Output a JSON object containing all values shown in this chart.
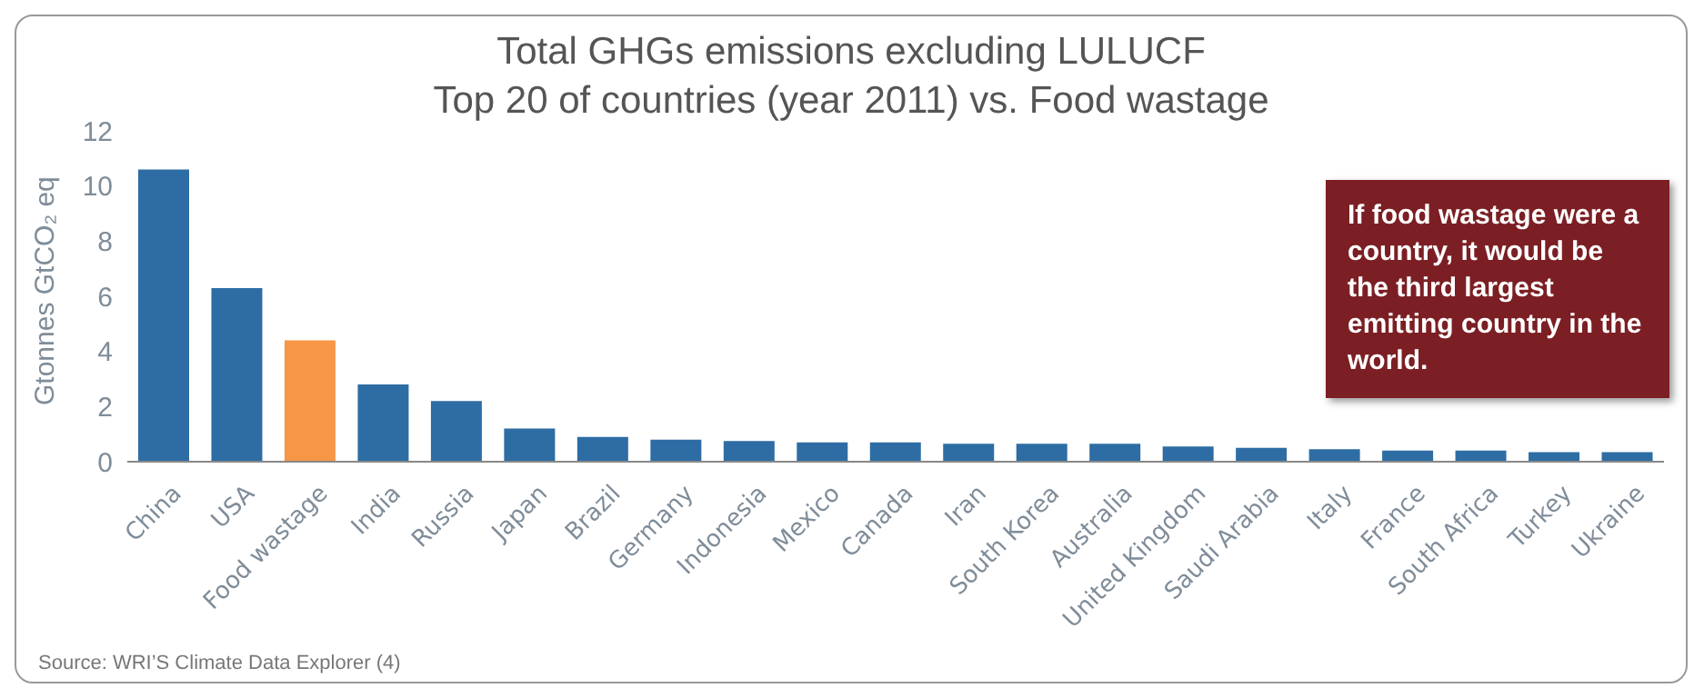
{
  "chart_data": {
    "type": "bar",
    "title": "Total GHGs emissions excluding LULUCF",
    "subtitle": "Top 20 of countries (year 2011) vs. Food wastage",
    "ylabel": "Gtonnes GtCO₂ eq",
    "categories": [
      "China",
      "USA",
      "Food wastage",
      "India",
      "Russia",
      "Japan",
      "Brazil",
      "Germany",
      "Indonesia",
      "Mexico",
      "Canada",
      "Iran",
      "South Korea",
      "Australia",
      "United Kingdom",
      "Saudi Arabia",
      "Italy",
      "France",
      "South Africa",
      "Turkey",
      "Ukraine"
    ],
    "values": [
      10.6,
      6.3,
      4.4,
      2.8,
      2.2,
      1.2,
      0.9,
      0.8,
      0.75,
      0.7,
      0.7,
      0.65,
      0.65,
      0.65,
      0.55,
      0.5,
      0.45,
      0.4,
      0.4,
      0.35,
      0.35
    ],
    "colors": [
      "#2e6da4",
      "#2e6da4",
      "#f79646",
      "#2e6da4",
      "#2e6da4",
      "#2e6da4",
      "#2e6da4",
      "#2e6da4",
      "#2e6da4",
      "#2e6da4",
      "#2e6da4",
      "#2e6da4",
      "#2e6da4",
      "#2e6da4",
      "#2e6da4",
      "#2e6da4",
      "#2e6da4",
      "#2e6da4",
      "#2e6da4",
      "#2e6da4",
      "#2e6da4"
    ],
    "ylim": [
      0,
      12
    ],
    "yticks": [
      0,
      2,
      4,
      6,
      8,
      10,
      12
    ],
    "grid": false,
    "annotations": [
      "If food wastage were a country, it would be the third largest emitting country in the world.",
      "Source: WRI’S Climate Data Explorer (4)"
    ]
  }
}
